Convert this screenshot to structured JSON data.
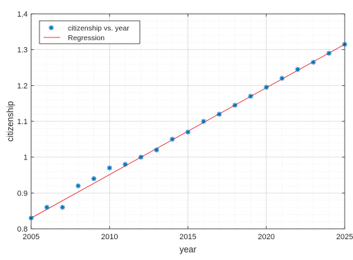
{
  "chart_data": {
    "type": "scatter",
    "xlabel": "year",
    "ylabel": "citizenship",
    "xlim": [
      2005,
      2025
    ],
    "ylim": [
      0.8,
      1.4
    ],
    "xticks": [
      2005,
      2010,
      2015,
      2020,
      2025
    ],
    "yticks": [
      0.8,
      0.9,
      1.0,
      1.1,
      1.2,
      1.3,
      1.4
    ],
    "xtick_labels": [
      "2005",
      "2010",
      "2015",
      "2020",
      "2025"
    ],
    "ytick_labels": [
      "0.8",
      "0.9",
      "1",
      "1.1",
      "1.2",
      "1.3",
      "1.4"
    ],
    "grid": true,
    "minor_grid": true,
    "legend_position": "top-left",
    "series": [
      {
        "name": "citizenship vs. year",
        "type": "scatter",
        "marker": "asterisk",
        "color": "#0072BD",
        "x": [
          2005,
          2006,
          2007,
          2008,
          2009,
          2010,
          2011,
          2012,
          2013,
          2014,
          2015,
          2016,
          2017,
          2018,
          2019,
          2020,
          2021,
          2022,
          2023,
          2024,
          2025
        ],
        "y": [
          0.83,
          0.86,
          0.86,
          0.92,
          0.94,
          0.97,
          0.98,
          1.0,
          1.02,
          1.05,
          1.07,
          1.1,
          1.12,
          1.145,
          1.17,
          1.195,
          1.22,
          1.245,
          1.265,
          1.29,
          1.315
        ]
      },
      {
        "name": "Regression",
        "type": "line",
        "color": "#E8333A",
        "x": [
          2005,
          2025
        ],
        "y": [
          0.83,
          1.315
        ]
      }
    ]
  }
}
